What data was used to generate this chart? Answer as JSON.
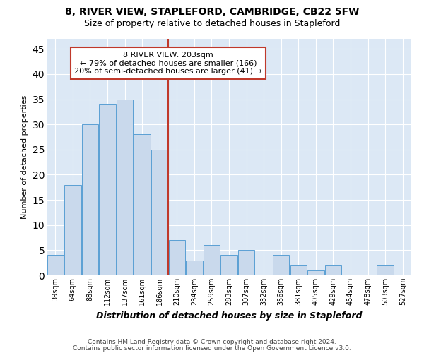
{
  "title": "8, RIVER VIEW, STAPLEFORD, CAMBRIDGE, CB22 5FW",
  "subtitle": "Size of property relative to detached houses in Stapleford",
  "xlabel_bottom": "Distribution of detached houses by size in Stapleford",
  "ylabel": "Number of detached properties",
  "categories": [
    "39sqm",
    "64sqm",
    "88sqm",
    "112sqm",
    "137sqm",
    "161sqm",
    "186sqm",
    "210sqm",
    "234sqm",
    "259sqm",
    "283sqm",
    "307sqm",
    "332sqm",
    "356sqm",
    "381sqm",
    "405sqm",
    "429sqm",
    "454sqm",
    "478sqm",
    "503sqm",
    "527sqm"
  ],
  "values": [
    4,
    18,
    30,
    34,
    35,
    28,
    25,
    7,
    3,
    6,
    4,
    5,
    0,
    4,
    2,
    1,
    2,
    0,
    0,
    2,
    0
  ],
  "bar_color": "#c9d9ec",
  "bar_edge_color": "#5a9fd4",
  "marker_bin_index": 7,
  "marker_line_color": "#c0392b",
  "annotation_line1": "8 RIVER VIEW: 203sqm",
  "annotation_line2": "← 79% of detached houses are smaller (166)",
  "annotation_line3": "20% of semi-detached houses are larger (41) →",
  "annotation_box_color": "#ffffff",
  "annotation_box_edge_color": "#c0392b",
  "ylim": [
    0,
    47
  ],
  "yticks": [
    0,
    5,
    10,
    15,
    20,
    25,
    30,
    35,
    40,
    45
  ],
  "background_color": "#dce8f5",
  "grid_color": "#ffffff",
  "footer_line1": "Contains HM Land Registry data © Crown copyright and database right 2024.",
  "footer_line2": "Contains public sector information licensed under the Open Government Licence v3.0."
}
